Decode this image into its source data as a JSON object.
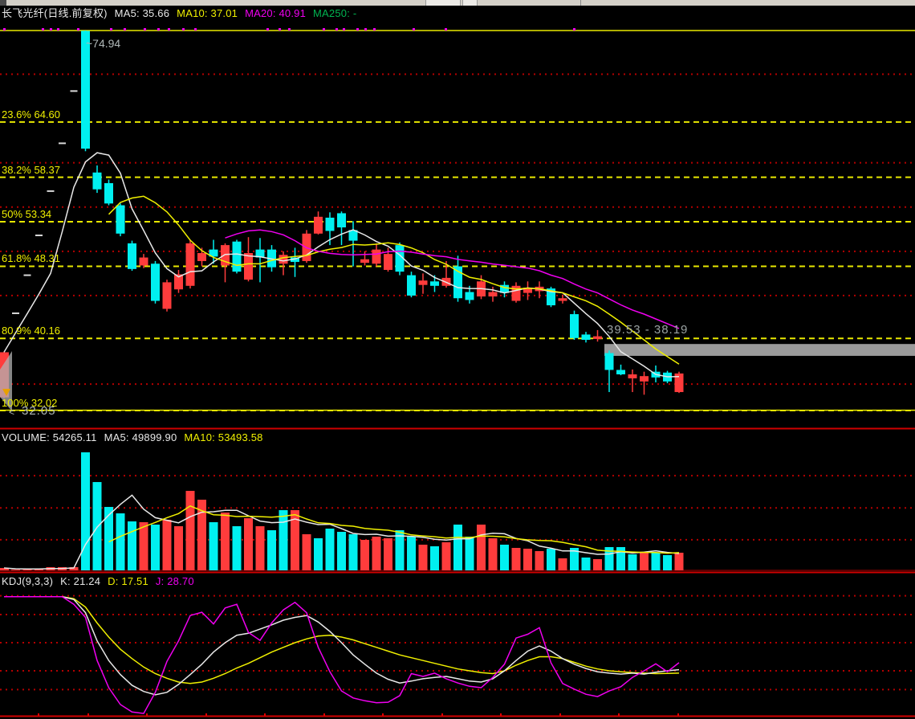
{
  "price_pane": {
    "header": {
      "title": "长飞光纤(日线.前复权)",
      "ma5": "MA5: 35.66",
      "ma10": "MA10: 37.01",
      "ma20": "MA20: 40.91",
      "ma250": "MA250: -"
    },
    "high_marker": "~74.94",
    "low_marker_arrow": "<",
    "low_marker": "32.05",
    "gap_label": "39.53 - 38.19"
  },
  "volume_pane": {
    "header": {
      "volume": "VOLUME: 54265.11",
      "ma5": "MA5: 49899.90",
      "ma10": "MA10: 53493.58"
    }
  },
  "kdj_pane": {
    "header": {
      "name": "KDJ(9,3,3)",
      "k": "K: 21.24",
      "d": "D: 17.51",
      "j": "J: 28.70"
    }
  },
  "colors": {
    "background": "#000000",
    "up": "#ff3c3c",
    "down": "#00f0f0",
    "ma5": "#e8e8e8",
    "ma10": "#f0f000",
    "ma20": "#f000f0",
    "ma250": "#00b450",
    "fib_line": "#e8e800",
    "grid_dot": "#b40000",
    "separator": "#d00000",
    "gap_band": "#9a9a9a",
    "one_price_dash": "#d8d8d8",
    "signal_dot": "#f000f0",
    "kdj_k": "#e8e8e8",
    "kdj_d": "#f0f000",
    "kdj_j": "#f000f0"
  },
  "chart_data": [
    {
      "type": "candlestick",
      "name": "price",
      "title": "长飞光纤(日线.前复权)",
      "ma_readouts": {
        "ma5": 35.66,
        "ma10": 37.01,
        "ma20": 40.91,
        "ma250": null
      },
      "ylim": [
        30.02,
        77.66
      ],
      "high_label_price": 74.94,
      "alert_line_price": 32.05,
      "fib_levels": [
        {
          "label": "23.6% 64.60",
          "price": 64.6
        },
        {
          "label": "38.2% 58.37",
          "price": 58.37
        },
        {
          "label": "50% 53.34",
          "price": 53.34
        },
        {
          "label": "61.8% 48.31",
          "price": 48.31
        },
        {
          "label": "80.9% 40.16",
          "price": 40.16
        },
        {
          "label": "100% 32.02",
          "price": 32.02
        }
      ],
      "grid_prices": [
        70,
        60,
        55,
        50,
        45,
        35
      ],
      "gap_zone": {
        "top_price": 39.53,
        "bottom_price": 38.19,
        "x_start": 753,
        "x_end": 1140
      },
      "signal_dots_x": [
        5,
        53,
        63,
        72,
        97,
        138,
        155,
        180,
        197,
        210,
        228,
        243,
        333,
        348,
        360,
        403,
        419,
        428,
        445,
        455,
        466,
        515,
        555,
        715
      ],
      "ohlc": [
        [
          33.5,
          38.65,
          33.4,
          38.6
        ],
        [
          43.0,
          43.0,
          43.0,
          43.0
        ],
        [
          47.3,
          47.3,
          47.3,
          47.3
        ],
        [
          51.8,
          51.8,
          51.8,
          51.8
        ],
        [
          56.8,
          56.8,
          56.8,
          56.8
        ],
        [
          62.2,
          62.2,
          62.2,
          62.2
        ],
        [
          68.1,
          68.1,
          68.1,
          68.1
        ],
        [
          74.9,
          74.94,
          61.3,
          61.6
        ],
        [
          58.9,
          59.7,
          56.6,
          57.0
        ],
        [
          57.7,
          58.1,
          55.2,
          55.4
        ],
        [
          55.2,
          55.4,
          51.7,
          52.0
        ],
        [
          50.9,
          51.2,
          47.8,
          48.0
        ],
        [
          48.4,
          49.7,
          48.1,
          49.3
        ],
        [
          48.6,
          48.9,
          44.1,
          44.4
        ],
        [
          43.5,
          46.8,
          43.2,
          46.5
        ],
        [
          45.7,
          47.9,
          45.3,
          47.4
        ],
        [
          46.1,
          51.3,
          45.8,
          50.9
        ],
        [
          48.9,
          50.4,
          48.3,
          49.8
        ],
        [
          50.2,
          51.3,
          48.6,
          49.4
        ],
        [
          48.4,
          50.9,
          46.5,
          50.7
        ],
        [
          51.1,
          51.3,
          47.5,
          47.7
        ],
        [
          46.8,
          51.6,
          46.6,
          49.8
        ],
        [
          50.2,
          51.5,
          46.5,
          49.3
        ],
        [
          50.2,
          50.7,
          47.7,
          48.2
        ],
        [
          48.6,
          50.0,
          47.3,
          49.6
        ],
        [
          49.3,
          50.4,
          47.1,
          48.8
        ],
        [
          48.9,
          52.4,
          48.7,
          52.0
        ],
        [
          52.0,
          54.5,
          51.9,
          53.9
        ],
        [
          53.8,
          54.4,
          50.7,
          52.3
        ],
        [
          54.3,
          54.5,
          50.7,
          52.7
        ],
        [
          52.4,
          53.4,
          48.3,
          51.2
        ],
        [
          48.7,
          50.0,
          48.4,
          49.1
        ],
        [
          48.6,
          50.9,
          48.3,
          50.2
        ],
        [
          47.9,
          50.4,
          47.7,
          49.7
        ],
        [
          50.7,
          51.0,
          47.3,
          47.7
        ],
        [
          47.3,
          47.7,
          44.8,
          45.0
        ],
        [
          46.2,
          47.5,
          45.2,
          46.7
        ],
        [
          46.6,
          47.3,
          45.4,
          46.1
        ],
        [
          46.1,
          48.9,
          45.9,
          47.0
        ],
        [
          48.3,
          49.5,
          44.3,
          44.7
        ],
        [
          45.4,
          46.1,
          44.1,
          44.5
        ],
        [
          44.9,
          47.3,
          44.6,
          46.6
        ],
        [
          44.9,
          46.0,
          44.3,
          45.4
        ],
        [
          46.2,
          46.6,
          44.8,
          45.3
        ],
        [
          44.4,
          46.5,
          44.2,
          46.1
        ],
        [
          45.3,
          46.6,
          44.5,
          45.9
        ],
        [
          45.5,
          46.6,
          44.7,
          46.0
        ],
        [
          45.8,
          46.0,
          43.7,
          43.9
        ],
        [
          44.4,
          45.1,
          44.1,
          44.7
        ],
        [
          42.9,
          43.3,
          40.0,
          40.2
        ],
        [
          40.6,
          40.9,
          39.7,
          40.0
        ],
        [
          40.1,
          41.1,
          39.8,
          40.4
        ],
        [
          38.5,
          38.8,
          34.1,
          36.6
        ],
        [
          36.6,
          37.2,
          36.0,
          36.1
        ],
        [
          35.65,
          36.65,
          34.1,
          36.1
        ],
        [
          35.3,
          36.4,
          33.8,
          35.9
        ],
        [
          36.4,
          37.1,
          35.2,
          35.75
        ],
        [
          36.3,
          36.5,
          35.1,
          35.3
        ],
        [
          34.1,
          36.4,
          34.0,
          36.2
        ]
      ],
      "ma": {
        "ma5_period": 5,
        "ma10_period": 10,
        "ma20_period": 20
      }
    },
    {
      "type": "bar",
      "name": "volume",
      "readouts": {
        "volume": 54265.11,
        "ma5": 49899.9,
        "ma10": 53493.58
      },
      "ylim": [
        0,
        380000
      ],
      "grid_values": [
        291000,
        192000,
        94000
      ],
      "values": [
        7400,
        2467,
        2467,
        4933,
        9866,
        9866,
        9866,
        362590,
        271326,
        194861,
        175129,
        150463,
        147996,
        140596,
        155396,
        135663,
        244193,
        217061,
        147996,
        177595,
        135663,
        160329,
        135663,
        123330,
        184995,
        184995,
        110997,
        98664,
        128263,
        118397,
        110997,
        93731,
        103597,
        98664,
        123330,
        103597,
        78931,
        73998,
        86331,
        140596,
        103597,
        140596,
        98664,
        78931,
        69065,
        66598,
        59198,
        66598,
        37000,
        69065,
        39466,
        34532,
        71531,
        71531,
        49332,
        54265,
        54265,
        46865,
        54265
      ],
      "bar_colors": [
        "r",
        "r",
        "r",
        "r",
        "r",
        "r",
        "r",
        "c",
        "c",
        "c",
        "c",
        "c",
        "r",
        "c",
        "r",
        "r",
        "r",
        "r",
        "c",
        "r",
        "c",
        "r",
        "r",
        "c",
        "c",
        "r",
        "r",
        "c",
        "c",
        "c",
        "c",
        "r",
        "r",
        "r",
        "c",
        "c",
        "r",
        "c",
        "r",
        "c",
        "c",
        "r",
        "r",
        "c",
        "r",
        "r",
        "r",
        "c",
        "r",
        "c",
        "c",
        "r",
        "c",
        "c",
        "c",
        "r",
        "c",
        "c",
        "r"
      ]
    },
    {
      "type": "line",
      "name": "kdj",
      "params": "9,3,3",
      "readouts": {
        "k": 21.24,
        "d": 17.51,
        "j": 28.7
      },
      "ylim": [
        -29.7,
        123.7
      ],
      "grid_values": [
        100,
        80,
        50,
        20,
        0
      ],
      "series": [
        {
          "name": "K",
          "values": [
            99,
            99,
            99,
            99,
            99,
            99,
            96,
            82,
            52,
            31,
            16,
            4.5,
            -2,
            -5.5,
            -3,
            5.5,
            16,
            27,
            40,
            50,
            58,
            60,
            64.5,
            69,
            74,
            77,
            79,
            72,
            62,
            50,
            37,
            27,
            17.5,
            11,
            7,
            9,
            11.5,
            13,
            14,
            11.5,
            9,
            8,
            11.5,
            20,
            31,
            41,
            46.5,
            41,
            33,
            27,
            22.5,
            19,
            17.5,
            16.5,
            17.5,
            16.5,
            18.5,
            20,
            21.24
          ]
        },
        {
          "name": "D",
          "values": [
            99,
            99,
            99,
            99,
            99,
            99,
            97,
            88,
            71,
            56,
            43,
            33,
            24,
            17,
            12,
            8,
            6.5,
            8,
            12,
            17,
            23,
            28,
            34,
            40,
            45,
            50,
            54,
            57,
            58,
            56,
            53,
            49,
            45,
            41,
            37,
            34,
            31,
            28,
            25,
            22,
            20,
            18,
            17,
            20,
            26,
            31,
            35,
            35,
            33,
            29,
            25,
            22,
            20,
            19,
            18,
            17.5,
            17,
            17.2,
            17.51
          ]
        },
        {
          "name": "J",
          "values": [
            99,
            99,
            99,
            99,
            99,
            99,
            91,
            77,
            31,
            2,
            -16,
            -24,
            -25.5,
            -3,
            30,
            52,
            79,
            82.5,
            70,
            87,
            91,
            61,
            52.5,
            71,
            85,
            93,
            82,
            45,
            19,
            -1.5,
            -9,
            -12,
            -14,
            -13.5,
            -6.5,
            17,
            14,
            17.5,
            11.5,
            7,
            3.5,
            2,
            13,
            27,
            55,
            59,
            66,
            28.5,
            6.5,
            0.5,
            -5,
            -7.5,
            -1.5,
            3,
            13,
            20,
            27.5,
            19,
            28.7
          ]
        }
      ]
    }
  ]
}
